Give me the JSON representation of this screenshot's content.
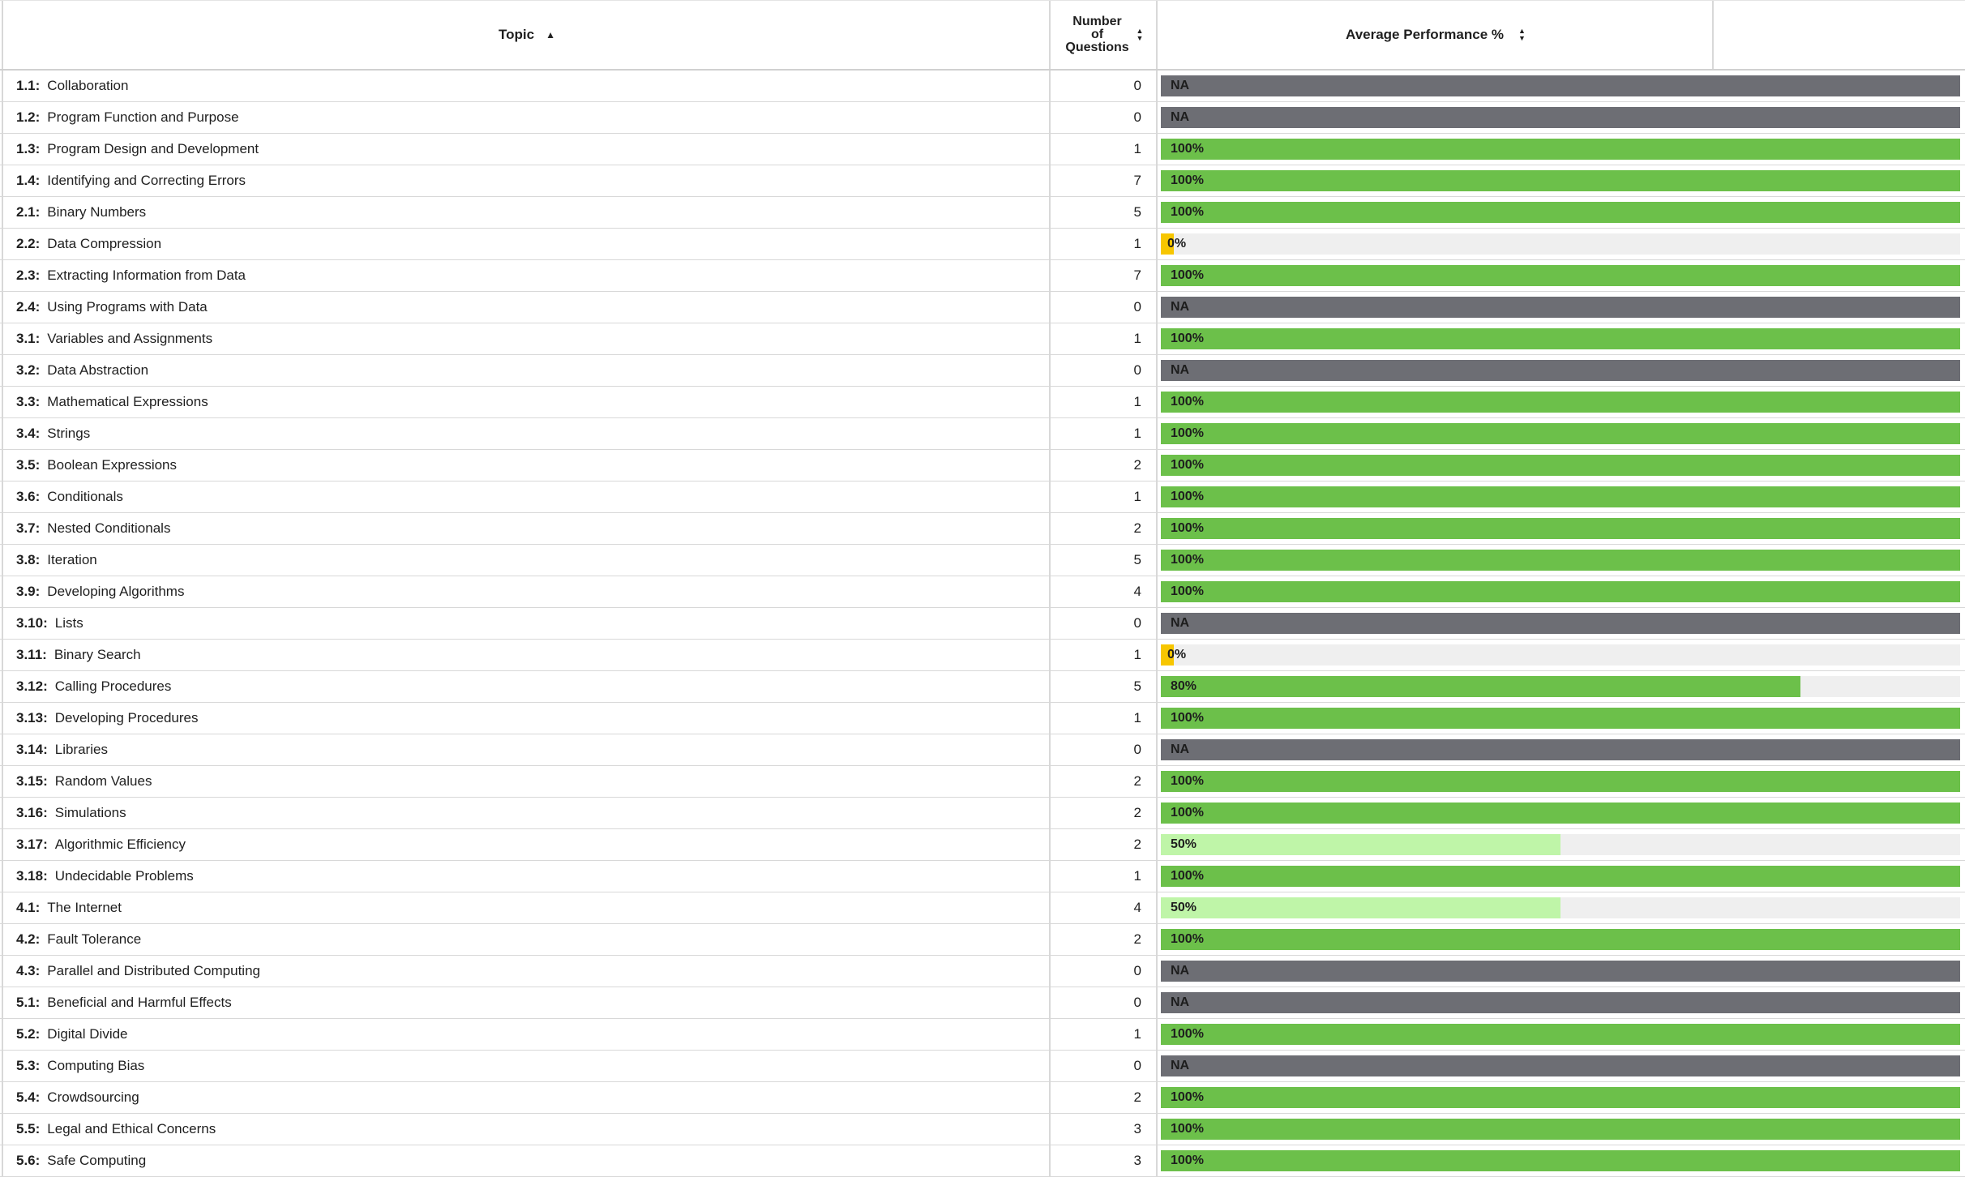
{
  "header": {
    "topic": "Topic",
    "count_line1": "Number",
    "count_line2": "of",
    "count_line3": "Questions",
    "performance": "Average Performance %",
    "sort_asc_icon": "▲",
    "sort_both_up": "▲",
    "sort_both_down": "▼"
  },
  "colors": {
    "na": "#6d6e74",
    "full": "#6cc04a",
    "partial": "#bff5a8",
    "zero": "#f7c600",
    "track": "#efefef"
  },
  "rows": [
    {
      "code": "1.1:",
      "name": "Collaboration",
      "count": "0",
      "label": "NA",
      "pct": null
    },
    {
      "code": "1.2:",
      "name": "Program Function and Purpose",
      "count": "0",
      "label": "NA",
      "pct": null
    },
    {
      "code": "1.3:",
      "name": "Program Design and Development",
      "count": "1",
      "label": "100%",
      "pct": 100
    },
    {
      "code": "1.4:",
      "name": "Identifying and Correcting Errors",
      "count": "7",
      "label": "100%",
      "pct": 100
    },
    {
      "code": "2.1:",
      "name": "Binary Numbers",
      "count": "5",
      "label": "100%",
      "pct": 100
    },
    {
      "code": "2.2:",
      "name": "Data Compression",
      "count": "1",
      "label": "0%",
      "pct": 0
    },
    {
      "code": "2.3:",
      "name": "Extracting Information from Data",
      "count": "7",
      "label": "100%",
      "pct": 100
    },
    {
      "code": "2.4:",
      "name": "Using Programs with Data",
      "count": "0",
      "label": "NA",
      "pct": null
    },
    {
      "code": "3.1:",
      "name": "Variables and Assignments",
      "count": "1",
      "label": "100%",
      "pct": 100
    },
    {
      "code": "3.2:",
      "name": "Data Abstraction",
      "count": "0",
      "label": "NA",
      "pct": null
    },
    {
      "code": "3.3:",
      "name": "Mathematical Expressions",
      "count": "1",
      "label": "100%",
      "pct": 100
    },
    {
      "code": "3.4:",
      "name": "Strings",
      "count": "1",
      "label": "100%",
      "pct": 100
    },
    {
      "code": "3.5:",
      "name": "Boolean Expressions",
      "count": "2",
      "label": "100%",
      "pct": 100
    },
    {
      "code": "3.6:",
      "name": "Conditionals",
      "count": "1",
      "label": "100%",
      "pct": 100
    },
    {
      "code": "3.7:",
      "name": "Nested Conditionals",
      "count": "2",
      "label": "100%",
      "pct": 100
    },
    {
      "code": "3.8:",
      "name": "Iteration",
      "count": "5",
      "label": "100%",
      "pct": 100
    },
    {
      "code": "3.9:",
      "name": "Developing Algorithms",
      "count": "4",
      "label": "100%",
      "pct": 100
    },
    {
      "code": "3.10:",
      "name": "Lists",
      "count": "0",
      "label": "NA",
      "pct": null
    },
    {
      "code": "3.11:",
      "name": "Binary Search",
      "count": "1",
      "label": "0%",
      "pct": 0
    },
    {
      "code": "3.12:",
      "name": "Calling Procedures",
      "count": "5",
      "label": "80%",
      "pct": 80
    },
    {
      "code": "3.13:",
      "name": "Developing Procedures",
      "count": "1",
      "label": "100%",
      "pct": 100
    },
    {
      "code": "3.14:",
      "name": "Libraries",
      "count": "0",
      "label": "NA",
      "pct": null
    },
    {
      "code": "3.15:",
      "name": "Random Values",
      "count": "2",
      "label": "100%",
      "pct": 100
    },
    {
      "code": "3.16:",
      "name": "Simulations",
      "count": "2",
      "label": "100%",
      "pct": 100
    },
    {
      "code": "3.17:",
      "name": "Algorithmic Efficiency",
      "count": "2",
      "label": "50%",
      "pct": 50
    },
    {
      "code": "3.18:",
      "name": "Undecidable Problems",
      "count": "1",
      "label": "100%",
      "pct": 100
    },
    {
      "code": "4.1:",
      "name": "The Internet",
      "count": "4",
      "label": "50%",
      "pct": 50
    },
    {
      "code": "4.2:",
      "name": "Fault Tolerance",
      "count": "2",
      "label": "100%",
      "pct": 100
    },
    {
      "code": "4.3:",
      "name": "Parallel and Distributed Computing",
      "count": "0",
      "label": "NA",
      "pct": null
    },
    {
      "code": "5.1:",
      "name": "Beneficial and Harmful Effects",
      "count": "0",
      "label": "NA",
      "pct": null
    },
    {
      "code": "5.2:",
      "name": "Digital Divide",
      "count": "1",
      "label": "100%",
      "pct": 100
    },
    {
      "code": "5.3:",
      "name": "Computing Bias",
      "count": "0",
      "label": "NA",
      "pct": null
    },
    {
      "code": "5.4:",
      "name": "Crowdsourcing",
      "count": "2",
      "label": "100%",
      "pct": 100
    },
    {
      "code": "5.5:",
      "name": "Legal and Ethical Concerns",
      "count": "3",
      "label": "100%",
      "pct": 100
    },
    {
      "code": "5.6:",
      "name": "Safe Computing",
      "count": "3",
      "label": "100%",
      "pct": 100
    }
  ]
}
